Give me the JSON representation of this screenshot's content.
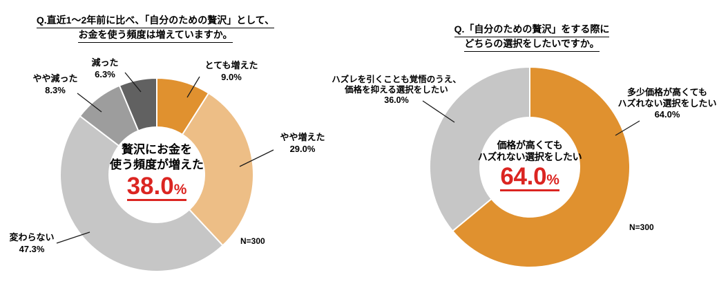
{
  "chart_data": [
    {
      "type": "pie",
      "subtype": "donut",
      "title_lines": [
        "Q.直近1〜2年前に比べ、「自分のための贅沢」として、",
        "お金を使う頻度は増えていますか。"
      ],
      "start_angle_deg": 0,
      "direction": "clockwise",
      "legend": "none",
      "slices": [
        {
          "label": "とても増えた",
          "value": 9.0,
          "pct_label": "9.0%",
          "color": "#E0912F"
        },
        {
          "label": "やや増えた",
          "value": 29.0,
          "pct_label": "29.0%",
          "color": "#EDBE86"
        },
        {
          "label": "変わらない",
          "value": 47.3,
          "pct_label": "47.3%",
          "color": "#C6C6C6"
        },
        {
          "label": "やや減った",
          "value": 8.3,
          "pct_label": "8.3%",
          "color": "#9D9D9D"
        },
        {
          "label": "減った",
          "value": 6.3,
          "pct_label": "6.3%",
          "color": "#616161"
        }
      ],
      "center_text_lines": [
        "贅沢にお金を",
        "使う頻度が増えた"
      ],
      "center_value": "38.0",
      "center_value_unit": "%",
      "center_value_color": "#DB2521",
      "sample_size_label": "N=300"
    },
    {
      "type": "pie",
      "subtype": "donut",
      "title_lines": [
        "Q.「自分のための贅沢」をする際に",
        "どちらの選択をしたいですか。"
      ],
      "start_angle_deg": 0,
      "direction": "clockwise",
      "legend": "none",
      "slices": [
        {
          "label_lines": [
            "多少価格が高くても",
            "ハズれない選択をしたい"
          ],
          "value": 64.0,
          "pct_label": "64.0%",
          "color": "#E0912F"
        },
        {
          "label_lines": [
            "ハズレを引くことも覚悟のうえ、",
            "価格を抑える選択をしたい"
          ],
          "value": 36.0,
          "pct_label": "36.0%",
          "color": "#C6C6C6"
        }
      ],
      "center_text_lines": [
        "価格が高くても",
        "ハズれない選択をしたい"
      ],
      "center_value": "64.0",
      "center_value_unit": "%",
      "center_value_color": "#DB2521",
      "sample_size_label": "N=300"
    }
  ]
}
